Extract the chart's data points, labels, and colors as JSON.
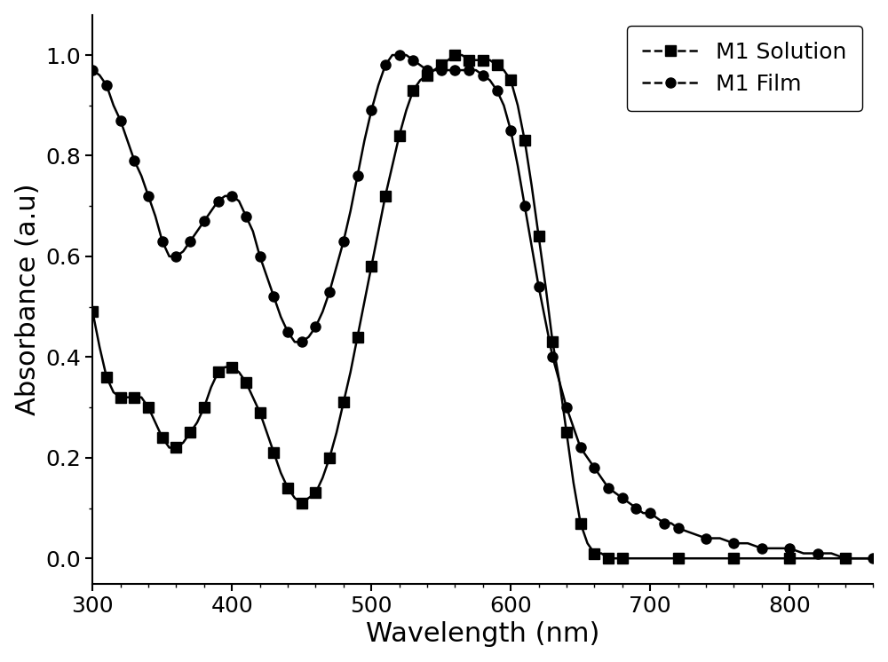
{
  "title": "",
  "xlabel": "Wavelength (nm)",
  "ylabel": "Absorbance (a.u)",
  "xlim": [
    300,
    860
  ],
  "ylim": [
    -0.05,
    1.08
  ],
  "xticks": [
    300,
    400,
    500,
    600,
    700,
    800
  ],
  "yticks": [
    0.0,
    0.2,
    0.4,
    0.6,
    0.8,
    1.0
  ],
  "background_color": "#ffffff",
  "line_color": "#000000",
  "solution_x": [
    300,
    305,
    310,
    315,
    320,
    325,
    330,
    335,
    340,
    345,
    350,
    355,
    360,
    365,
    370,
    375,
    380,
    385,
    390,
    395,
    400,
    405,
    410,
    415,
    420,
    425,
    430,
    435,
    440,
    445,
    450,
    455,
    460,
    465,
    470,
    475,
    480,
    485,
    490,
    495,
    500,
    505,
    510,
    515,
    520,
    525,
    530,
    535,
    540,
    545,
    550,
    555,
    560,
    565,
    570,
    575,
    580,
    585,
    590,
    595,
    600,
    605,
    610,
    615,
    620,
    625,
    630,
    635,
    640,
    645,
    650,
    655,
    660,
    665,
    670,
    675,
    680,
    700,
    720,
    740,
    760,
    780,
    800,
    820,
    840,
    860
  ],
  "solution_y": [
    0.49,
    0.42,
    0.36,
    0.33,
    0.32,
    0.32,
    0.32,
    0.32,
    0.3,
    0.27,
    0.24,
    0.22,
    0.22,
    0.23,
    0.25,
    0.27,
    0.3,
    0.34,
    0.37,
    0.38,
    0.38,
    0.37,
    0.35,
    0.32,
    0.29,
    0.25,
    0.21,
    0.17,
    0.14,
    0.12,
    0.11,
    0.12,
    0.13,
    0.16,
    0.2,
    0.25,
    0.31,
    0.37,
    0.44,
    0.51,
    0.58,
    0.65,
    0.72,
    0.78,
    0.84,
    0.89,
    0.93,
    0.95,
    0.96,
    0.97,
    0.98,
    0.99,
    1.0,
    1.0,
    0.99,
    0.99,
    0.99,
    0.99,
    0.98,
    0.97,
    0.95,
    0.9,
    0.83,
    0.74,
    0.64,
    0.54,
    0.43,
    0.35,
    0.25,
    0.15,
    0.07,
    0.03,
    0.01,
    0.01,
    0.0,
    0.0,
    0.0,
    0.0,
    0.0,
    0.0,
    0.0,
    0.0,
    0.0,
    0.0,
    0.0,
    0.0
  ],
  "film_x": [
    300,
    305,
    310,
    315,
    320,
    325,
    330,
    335,
    340,
    345,
    350,
    355,
    360,
    365,
    370,
    375,
    380,
    385,
    390,
    395,
    400,
    405,
    410,
    415,
    420,
    425,
    430,
    435,
    440,
    445,
    450,
    455,
    460,
    465,
    470,
    475,
    480,
    485,
    490,
    495,
    500,
    505,
    510,
    515,
    520,
    525,
    530,
    535,
    540,
    545,
    550,
    555,
    560,
    565,
    570,
    575,
    580,
    585,
    590,
    595,
    600,
    605,
    610,
    615,
    620,
    625,
    630,
    635,
    640,
    645,
    650,
    655,
    660,
    665,
    670,
    675,
    680,
    685,
    690,
    695,
    700,
    705,
    710,
    715,
    720,
    730,
    740,
    750,
    760,
    770,
    780,
    790,
    800,
    810,
    820,
    830,
    840,
    850,
    860
  ],
  "film_y": [
    0.97,
    0.96,
    0.94,
    0.9,
    0.87,
    0.83,
    0.79,
    0.76,
    0.72,
    0.68,
    0.63,
    0.6,
    0.6,
    0.61,
    0.63,
    0.65,
    0.67,
    0.69,
    0.71,
    0.72,
    0.72,
    0.71,
    0.68,
    0.65,
    0.6,
    0.56,
    0.52,
    0.48,
    0.45,
    0.43,
    0.43,
    0.44,
    0.46,
    0.49,
    0.53,
    0.58,
    0.63,
    0.69,
    0.76,
    0.83,
    0.89,
    0.94,
    0.98,
    1.0,
    1.0,
    1.0,
    0.99,
    0.98,
    0.97,
    0.97,
    0.97,
    0.97,
    0.97,
    0.97,
    0.97,
    0.97,
    0.96,
    0.95,
    0.93,
    0.9,
    0.85,
    0.78,
    0.7,
    0.62,
    0.54,
    0.47,
    0.4,
    0.35,
    0.3,
    0.26,
    0.22,
    0.2,
    0.18,
    0.16,
    0.14,
    0.13,
    0.12,
    0.11,
    0.1,
    0.09,
    0.09,
    0.08,
    0.07,
    0.07,
    0.06,
    0.05,
    0.04,
    0.04,
    0.03,
    0.03,
    0.02,
    0.02,
    0.02,
    0.01,
    0.01,
    0.01,
    0.0,
    0.0,
    0.0
  ],
  "solution_label": "M1 Solution",
  "film_label": "M1 Film",
  "marker_solution": "s",
  "marker_film": "o",
  "marker_size": 8,
  "linewidth": 1.8,
  "legend_fontsize": 18,
  "axis_label_fontsize": 22,
  "tick_fontsize": 18,
  "marker_every_sol": 2,
  "marker_every_film": 2
}
